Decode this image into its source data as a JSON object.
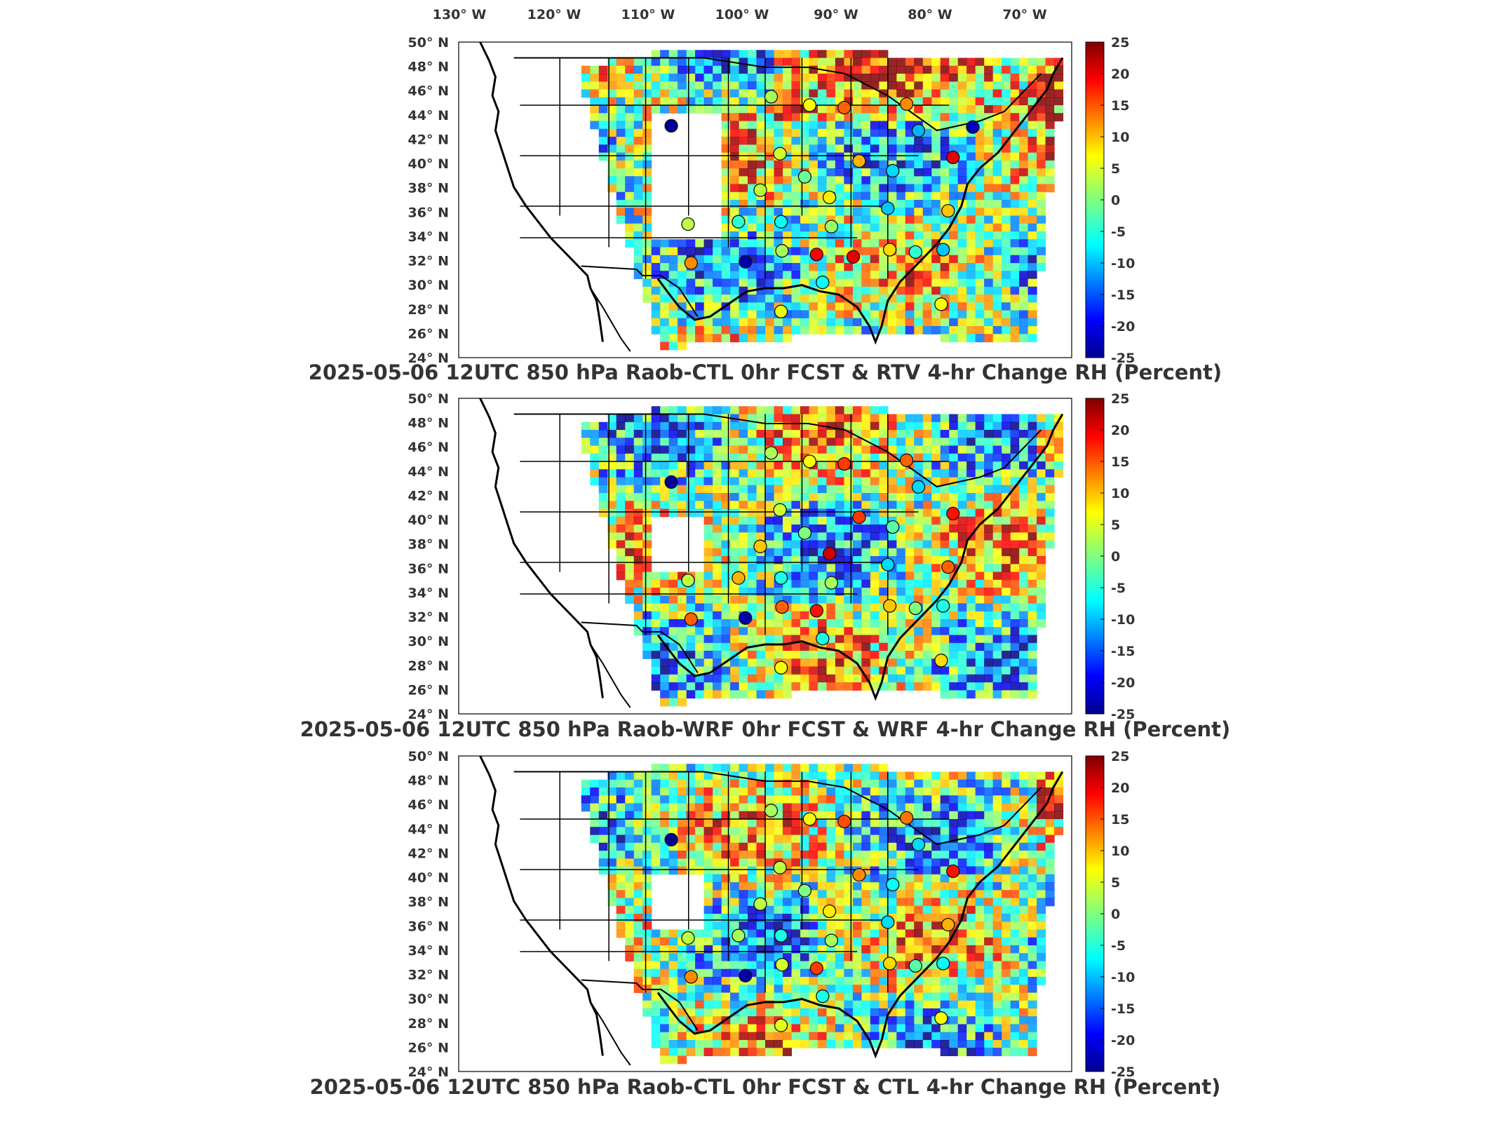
{
  "figure": {
    "top_lon_labels": [
      "130° W",
      "120° W",
      "110° W",
      "100° W",
      "90° W",
      "80° W",
      "70° W"
    ]
  },
  "chart_data": [
    {
      "type": "heatmap",
      "title": "2025-05-06 12UTC 850 hPa Raob-CTL 0hr FCST & RTV 4-hr Change RH (Percent)",
      "ytick_labels": [
        "50° N",
        "48° N",
        "46° N",
        "44° N",
        "42° N",
        "40° N",
        "38° N",
        "36° N",
        "34° N",
        "32° N",
        "30° N",
        "28° N",
        "26° N",
        "24° N"
      ],
      "xlim_lon": [
        -130,
        -68
      ],
      "ylim_lat": [
        24,
        50
      ],
      "colorbar": {
        "ticks": [
          "25",
          "20",
          "15",
          "10",
          "5",
          "0",
          "-5",
          "-10",
          "-15",
          "-20",
          "-25"
        ],
        "range": [
          -25,
          25
        ],
        "colormap": "jet"
      },
      "raob_points": [
        {
          "lon": -108.5,
          "lat": 43.1,
          "value": -24
        },
        {
          "lon": -98.4,
          "lat": 45.5,
          "value": 2
        },
        {
          "lon": -94.5,
          "lat": 44.8,
          "value": 6
        },
        {
          "lon": -91.0,
          "lat": 44.6,
          "value": 14
        },
        {
          "lon": -84.7,
          "lat": 44.9,
          "value": 12
        },
        {
          "lon": -83.5,
          "lat": 42.7,
          "value": -10
        },
        {
          "lon": -78.0,
          "lat": 43.0,
          "value": -22
        },
        {
          "lon": -97.5,
          "lat": 40.8,
          "value": 4
        },
        {
          "lon": -89.5,
          "lat": 40.2,
          "value": 10
        },
        {
          "lon": -86.1,
          "lat": 39.4,
          "value": -8
        },
        {
          "lon": -80.0,
          "lat": 40.5,
          "value": 20
        },
        {
          "lon": -99.5,
          "lat": 37.8,
          "value": 3
        },
        {
          "lon": -95.0,
          "lat": 38.9,
          "value": -1
        },
        {
          "lon": -92.5,
          "lat": 37.2,
          "value": 7
        },
        {
          "lon": -86.6,
          "lat": 36.3,
          "value": -9
        },
        {
          "lon": -80.5,
          "lat": 36.1,
          "value": 9
        },
        {
          "lon": -106.8,
          "lat": 35.0,
          "value": 3
        },
        {
          "lon": -101.7,
          "lat": 35.2,
          "value": -4
        },
        {
          "lon": -97.4,
          "lat": 35.2,
          "value": -6
        },
        {
          "lon": -92.3,
          "lat": 34.8,
          "value": 1
        },
        {
          "lon": -97.3,
          "lat": 32.8,
          "value": 2
        },
        {
          "lon": -93.8,
          "lat": 32.5,
          "value": 19
        },
        {
          "lon": -90.1,
          "lat": 32.3,
          "value": 20
        },
        {
          "lon": -86.4,
          "lat": 32.9,
          "value": 8
        },
        {
          "lon": -83.8,
          "lat": 32.7,
          "value": -4
        },
        {
          "lon": -81.0,
          "lat": 32.9,
          "value": -9
        },
        {
          "lon": -101.0,
          "lat": 31.9,
          "value": -23
        },
        {
          "lon": -106.5,
          "lat": 31.8,
          "value": 12
        },
        {
          "lon": -93.2,
          "lat": 30.2,
          "value": -6
        },
        {
          "lon": -97.4,
          "lat": 27.8,
          "value": 5
        },
        {
          "lon": -81.2,
          "lat": 28.4,
          "value": 6
        }
      ]
    },
    {
      "type": "heatmap",
      "title": "2025-05-06 12UTC 850 hPa Raob-WRF 0hr FCST & WRF 4-hr Change RH (Percent)",
      "ytick_labels": [
        "50° N",
        "48° N",
        "46° N",
        "44° N",
        "42° N",
        "40° N",
        "38° N",
        "36° N",
        "34° N",
        "32° N",
        "30° N",
        "28° N",
        "26° N",
        "24° N"
      ],
      "xlim_lon": [
        -130,
        -68
      ],
      "ylim_lat": [
        24,
        50
      ],
      "colorbar": {
        "ticks": [
          "25",
          "20",
          "15",
          "10",
          "5",
          "0",
          "-5",
          "-10",
          "-15",
          "-20",
          "-25"
        ],
        "range": [
          -25,
          25
        ],
        "colormap": "jet"
      },
      "raob_points": [
        {
          "lon": -108.5,
          "lat": 43.1,
          "value": -24
        },
        {
          "lon": -98.4,
          "lat": 45.5,
          "value": 2
        },
        {
          "lon": -94.5,
          "lat": 44.8,
          "value": 6
        },
        {
          "lon": -91.0,
          "lat": 44.6,
          "value": 16
        },
        {
          "lon": -84.7,
          "lat": 44.9,
          "value": 14
        },
        {
          "lon": -83.5,
          "lat": 42.7,
          "value": -8
        },
        {
          "lon": -97.5,
          "lat": 40.8,
          "value": 4
        },
        {
          "lon": -89.5,
          "lat": 40.2,
          "value": 16
        },
        {
          "lon": -86.1,
          "lat": 39.4,
          "value": -2
        },
        {
          "lon": -80.0,
          "lat": 40.5,
          "value": 18
        },
        {
          "lon": -99.5,
          "lat": 37.8,
          "value": 9
        },
        {
          "lon": -95.0,
          "lat": 38.9,
          "value": 0
        },
        {
          "lon": -92.5,
          "lat": 37.2,
          "value": 21
        },
        {
          "lon": -86.6,
          "lat": 36.3,
          "value": -8
        },
        {
          "lon": -80.5,
          "lat": 36.1,
          "value": 14
        },
        {
          "lon": -106.8,
          "lat": 35.0,
          "value": 3
        },
        {
          "lon": -101.7,
          "lat": 35.2,
          "value": 10
        },
        {
          "lon": -97.4,
          "lat": 35.2,
          "value": -5
        },
        {
          "lon": -92.3,
          "lat": 34.8,
          "value": 2
        },
        {
          "lon": -97.3,
          "lat": 32.8,
          "value": 14
        },
        {
          "lon": -93.8,
          "lat": 32.5,
          "value": 18
        },
        {
          "lon": -86.4,
          "lat": 32.9,
          "value": 9
        },
        {
          "lon": -83.8,
          "lat": 32.7,
          "value": 0
        },
        {
          "lon": -81.0,
          "lat": 32.9,
          "value": -5
        },
        {
          "lon": -101.0,
          "lat": 31.9,
          "value": -23
        },
        {
          "lon": -106.5,
          "lat": 31.8,
          "value": 14
        },
        {
          "lon": -93.2,
          "lat": 30.2,
          "value": -5
        },
        {
          "lon": -97.4,
          "lat": 27.8,
          "value": 6
        },
        {
          "lon": -81.2,
          "lat": 28.4,
          "value": 8
        }
      ]
    },
    {
      "type": "heatmap",
      "title": "2025-05-06 12UTC 850 hPa Raob-CTL 0hr FCST & CTL 4-hr Change RH (Percent)",
      "ytick_labels": [
        "50° N",
        "48° N",
        "46° N",
        "44° N",
        "42° N",
        "40° N",
        "38° N",
        "36° N",
        "34° N",
        "32° N",
        "30° N",
        "28° N",
        "26° N",
        "24° N"
      ],
      "xlim_lon": [
        -130,
        -68
      ],
      "ylim_lat": [
        24,
        50
      ],
      "colorbar": {
        "ticks": [
          "25",
          "20",
          "15",
          "10",
          "5",
          "0",
          "-5",
          "-10",
          "-15",
          "-20",
          "-25"
        ],
        "range": [
          -25,
          25
        ],
        "colormap": "jet"
      },
      "raob_points": [
        {
          "lon": -108.5,
          "lat": 43.1,
          "value": -24
        },
        {
          "lon": -98.4,
          "lat": 45.5,
          "value": 2
        },
        {
          "lon": -94.5,
          "lat": 44.8,
          "value": 6
        },
        {
          "lon": -91.0,
          "lat": 44.6,
          "value": 15
        },
        {
          "lon": -84.7,
          "lat": 44.9,
          "value": 13
        },
        {
          "lon": -83.5,
          "lat": 42.7,
          "value": -8
        },
        {
          "lon": -97.5,
          "lat": 40.8,
          "value": 3
        },
        {
          "lon": -89.5,
          "lat": 40.2,
          "value": 12
        },
        {
          "lon": -86.1,
          "lat": 39.4,
          "value": -6
        },
        {
          "lon": -80.0,
          "lat": 40.5,
          "value": 18
        },
        {
          "lon": -99.5,
          "lat": 37.8,
          "value": 3
        },
        {
          "lon": -95.0,
          "lat": 38.9,
          "value": 0
        },
        {
          "lon": -92.5,
          "lat": 37.2,
          "value": 7
        },
        {
          "lon": -86.6,
          "lat": 36.3,
          "value": -8
        },
        {
          "lon": -80.5,
          "lat": 36.1,
          "value": 10
        },
        {
          "lon": -106.8,
          "lat": 35.0,
          "value": 3
        },
        {
          "lon": -101.7,
          "lat": 35.2,
          "value": 2
        },
        {
          "lon": -97.4,
          "lat": 35.2,
          "value": -5
        },
        {
          "lon": -92.3,
          "lat": 34.8,
          "value": 2
        },
        {
          "lon": -97.3,
          "lat": 32.8,
          "value": 4
        },
        {
          "lon": -93.8,
          "lat": 32.5,
          "value": 16
        },
        {
          "lon": -86.4,
          "lat": 32.9,
          "value": 8
        },
        {
          "lon": -83.8,
          "lat": 32.7,
          "value": -2
        },
        {
          "lon": -81.0,
          "lat": 32.9,
          "value": -6
        },
        {
          "lon": -101.0,
          "lat": 31.9,
          "value": -23
        },
        {
          "lon": -106.5,
          "lat": 31.8,
          "value": 12
        },
        {
          "lon": -93.2,
          "lat": 30.2,
          "value": -5
        },
        {
          "lon": -97.4,
          "lat": 27.8,
          "value": 5
        },
        {
          "lon": -81.2,
          "lat": 28.4,
          "value": 6
        }
      ]
    }
  ]
}
